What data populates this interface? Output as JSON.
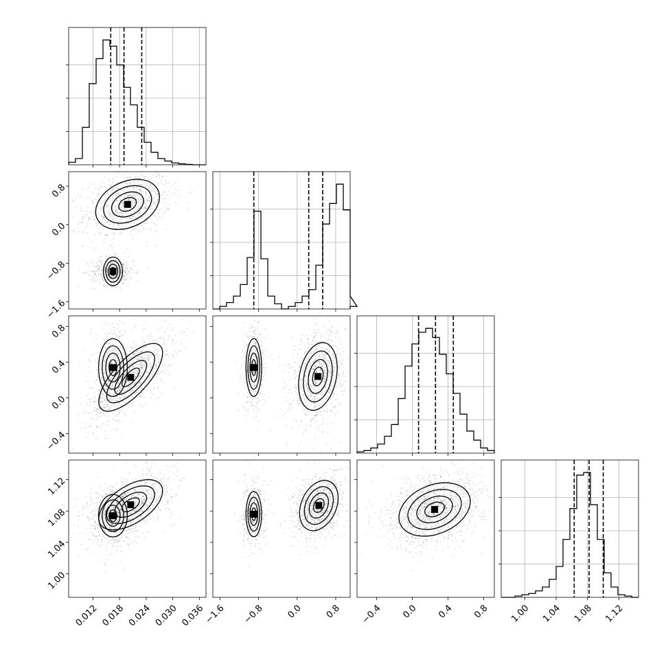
{
  "chart_data": {
    "type": "corner",
    "parameters": [
      {
        "range": [
          0.0065,
          0.0375
        ],
        "ticks": [
          "0.012",
          "0.018",
          "0.024",
          "0.030",
          "0.036"
        ],
        "tick_values": [
          0.012,
          0.018,
          0.024,
          0.03,
          0.036
        ],
        "quantiles": [
          0.016,
          0.019,
          0.023
        ],
        "hist": {
          "edges_start": 0.0065,
          "bin_width": 0.00155,
          "counts": [
            0.02,
            0.05,
            0.3,
            0.65,
            0.85,
            1.0,
            0.95,
            0.8,
            0.62,
            0.48,
            0.3,
            0.18,
            0.1,
            0.05,
            0.03,
            0.015,
            0.008,
            0.003,
            0,
            0
          ]
        }
      },
      {
        "range": [
          -1.75,
          1.1
        ],
        "ticks": [
          "−1.6",
          "−0.8",
          "0.0",
          "0.8"
        ],
        "tick_values": [
          -1.6,
          -0.8,
          0.0,
          0.8
        ],
        "quantiles": [
          -0.9,
          0.24,
          0.53
        ],
        "hist": {
          "edges_start": -1.75,
          "bin_width": 0.1425,
          "counts": [
            0,
            0.02,
            0.05,
            0.1,
            0.19,
            0.4,
            0.76,
            0.39,
            0.1,
            0.04,
            0,
            0.02,
            0.05,
            0.1,
            0.15,
            0.34,
            0.66,
            0.82,
            0.97,
            0.77,
            0.1,
            0.02
          ]
        }
      },
      {
        "range": [
          -0.62,
          0.92
        ],
        "ticks": [
          "−0.4",
          "0.0",
          "0.4",
          "0.8"
        ],
        "tick_values": [
          -0.4,
          0.0,
          0.4,
          0.8
        ],
        "quantiles": [
          0.07,
          0.26,
          0.46
        ],
        "hist": {
          "edges_start": -0.62,
          "bin_width": 0.077,
          "counts": [
            0.01,
            0.02,
            0.04,
            0.07,
            0.13,
            0.22,
            0.42,
            0.67,
            0.84,
            0.93,
            0.96,
            0.89,
            0.76,
            0.61,
            0.46,
            0.3,
            0.17,
            0.1,
            0.04,
            0.02
          ]
        }
      },
      {
        "range": [
          0.97,
          1.145
        ],
        "ticks": [
          "1.00",
          "1.04",
          "1.08",
          "1.12"
        ],
        "tick_values": [
          1.0,
          1.04,
          1.08,
          1.12
        ],
        "quantiles": [
          1.063,
          1.082,
          1.1
        ],
        "hist": {
          "edges_start": 0.97,
          "bin_width": 0.00875,
          "counts": [
            0,
            0,
            0.01,
            0.02,
            0.03,
            0.05,
            0.08,
            0.14,
            0.24,
            0.45,
            0.69,
            0.95,
            0.97,
            0.72,
            0.45,
            0.19,
            0.08,
            0.02,
            0.01,
            0
          ]
        }
      }
    ],
    "pairs": [
      {
        "row": 1,
        "col": 0,
        "modes": [
          {
            "mx": 0.0198,
            "my": 0.42,
            "sx": 0.0036,
            "sy": 0.26,
            "rho": 0.3,
            "w": 0.68
          },
          {
            "mx": 0.0165,
            "my": -0.97,
            "sx": 0.0018,
            "sy": 0.11,
            "rho": 0.0,
            "w": 0.32
          }
        ]
      },
      {
        "row": 2,
        "col": 0,
        "modes": [
          {
            "mx": 0.0205,
            "my": 0.23,
            "sx": 0.0036,
            "sy": 0.19,
            "rho": 0.72,
            "w": 0.68
          },
          {
            "mx": 0.0165,
            "my": 0.34,
            "sx": 0.0018,
            "sy": 0.18,
            "rho": 0.0,
            "w": 0.32
          }
        ]
      },
      {
        "row": 2,
        "col": 1,
        "modes": [
          {
            "mx": 0.43,
            "my": 0.24,
            "sx": 0.2,
            "sy": 0.19,
            "rho": 0.25,
            "w": 0.68
          },
          {
            "mx": -0.9,
            "my": 0.34,
            "sx": 0.09,
            "sy": 0.18,
            "rho": 0.0,
            "w": 0.32
          }
        ]
      },
      {
        "row": 3,
        "col": 0,
        "modes": [
          {
            "mx": 0.0205,
            "my": 1.088,
            "sx": 0.0036,
            "sy": 0.016,
            "rho": 0.55,
            "w": 0.68
          },
          {
            "mx": 0.0165,
            "my": 1.074,
            "sx": 0.0018,
            "sy": 0.015,
            "rho": 0.0,
            "w": 0.32
          }
        ]
      },
      {
        "row": 3,
        "col": 1,
        "modes": [
          {
            "mx": 0.45,
            "my": 1.087,
            "sx": 0.2,
            "sy": 0.016,
            "rho": 0.3,
            "w": 0.68
          },
          {
            "mx": -0.9,
            "my": 1.076,
            "sx": 0.09,
            "sy": 0.016,
            "rho": 0.0,
            "w": 0.32
          }
        ]
      },
      {
        "row": 3,
        "col": 2,
        "modes": [
          {
            "mx": 0.25,
            "my": 1.082,
            "sx": 0.2,
            "sy": 0.017,
            "rho": 0.3,
            "w": 1.0
          }
        ]
      }
    ],
    "xlabel": "",
    "ylabel": "",
    "grid": true
  }
}
